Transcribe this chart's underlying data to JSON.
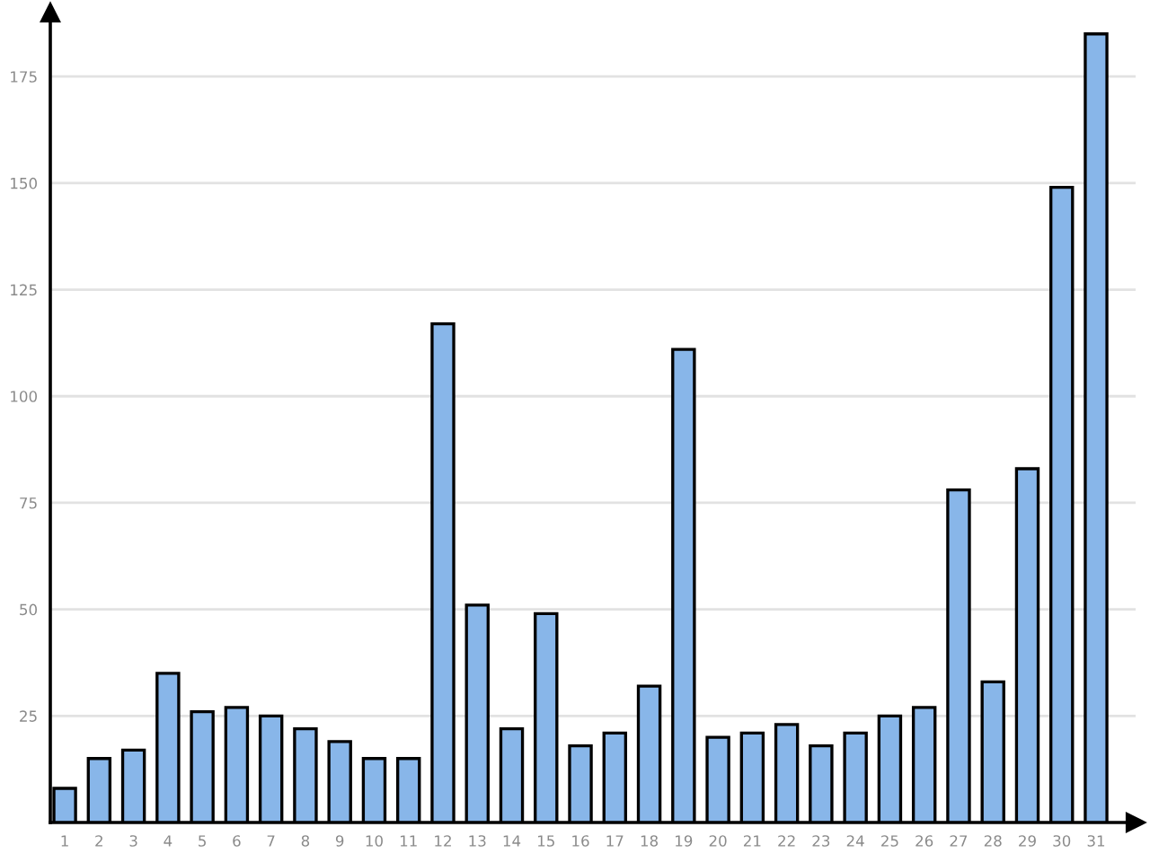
{
  "chart_data": {
    "type": "bar",
    "categories": [
      "1",
      "2",
      "3",
      "4",
      "5",
      "6",
      "7",
      "8",
      "9",
      "10",
      "11",
      "12",
      "13",
      "14",
      "15",
      "16",
      "17",
      "18",
      "19",
      "20",
      "21",
      "22",
      "23",
      "24",
      "25",
      "26",
      "27",
      "28",
      "29",
      "30",
      "31"
    ],
    "values": [
      8,
      15,
      17,
      35,
      26,
      27,
      25,
      22,
      19,
      15,
      15,
      117,
      51,
      22,
      49,
      18,
      21,
      32,
      111,
      20,
      21,
      23,
      18,
      21,
      25,
      27,
      78,
      33,
      83,
      149,
      185
    ],
    "color": "#88b6e9",
    "ylim": [
      0,
      190
    ],
    "yticks": [
      25,
      50,
      75,
      100,
      125,
      150,
      175
    ],
    "grid": "y"
  }
}
